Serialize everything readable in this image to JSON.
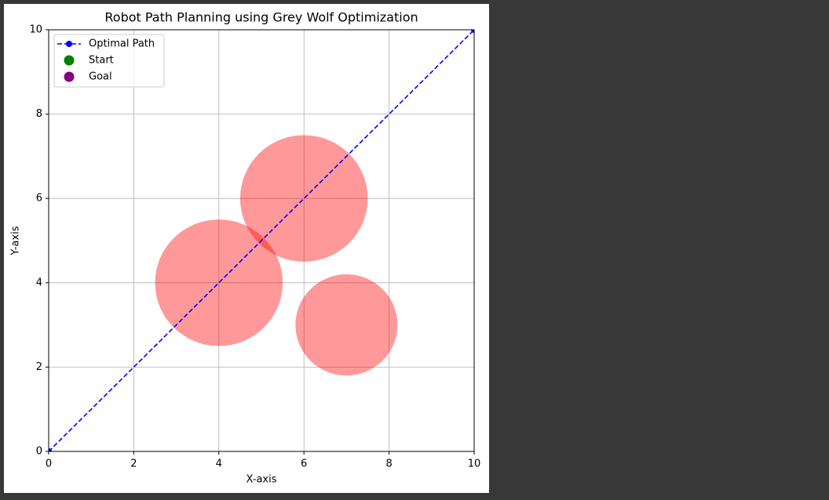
{
  "chart_data": {
    "type": "line",
    "title": "Robot Path Planning using Grey Wolf Optimization",
    "xlabel": "X-axis",
    "ylabel": "Y-axis",
    "xlim": [
      0,
      10
    ],
    "ylim": [
      0,
      10
    ],
    "xticks": [
      0,
      2,
      4,
      6,
      8,
      10
    ],
    "yticks": [
      0,
      2,
      4,
      6,
      8,
      10
    ],
    "grid": true,
    "legend": "upper left",
    "series": [
      {
        "name": "Optimal Path",
        "color": "#0000ff",
        "style": "dashed",
        "marker": true,
        "x": [
          0,
          10
        ],
        "values": [
          0,
          10
        ]
      },
      {
        "name": "Start",
        "color": "#008000",
        "style": "none",
        "marker": true,
        "x": [
          0
        ],
        "values": [
          0
        ]
      },
      {
        "name": "Goal",
        "color": "#800080",
        "style": "none",
        "marker": true,
        "x": [
          10
        ],
        "values": [
          10
        ]
      }
    ],
    "obstacles": {
      "color": "#ff0000",
      "alpha": 0.4,
      "items": [
        {
          "x": 4,
          "y": 4,
          "radius": 1.5
        },
        {
          "x": 6,
          "y": 6,
          "radius": 1.5
        },
        {
          "x": 7,
          "y": 3,
          "radius": 1.2
        }
      ]
    }
  }
}
